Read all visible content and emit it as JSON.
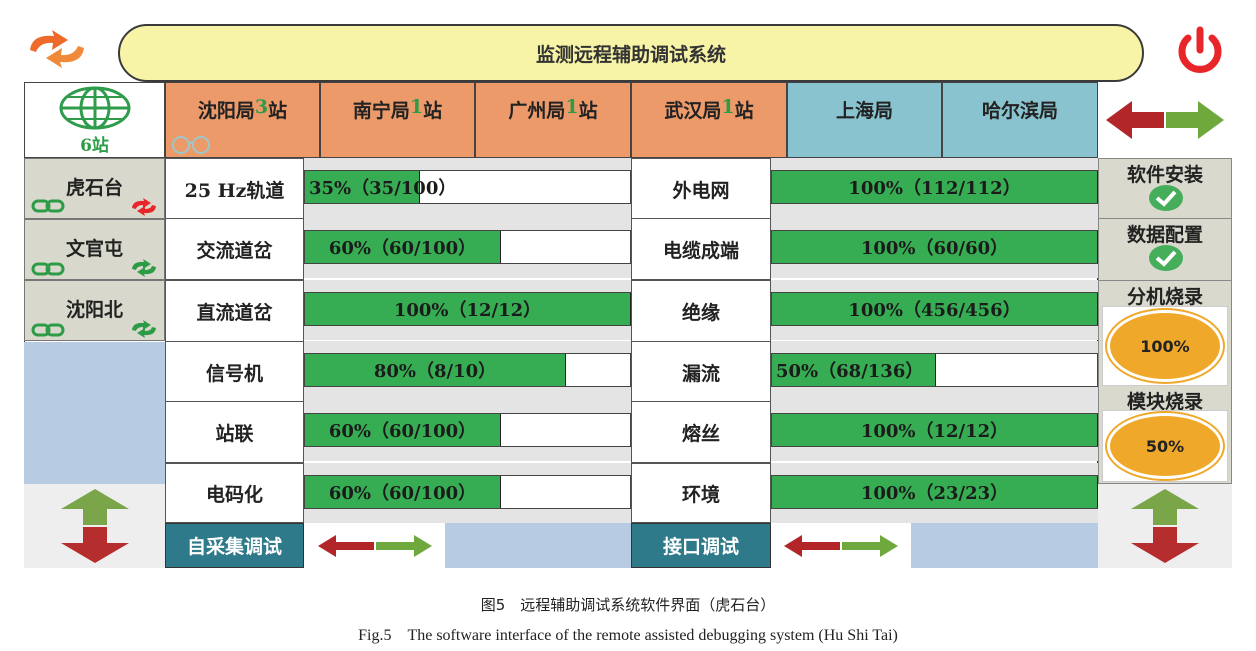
{
  "title": "监测远程辅助调试系统",
  "station_count": "6站",
  "tabs": [
    {
      "name": "沈阳局",
      "num": "3",
      "suffix": "站",
      "color": "orange"
    },
    {
      "name": "南宁局",
      "num": "1",
      "suffix": "站",
      "color": "orange"
    },
    {
      "name": "广州局",
      "num": "1",
      "suffix": "站",
      "color": "orange"
    },
    {
      "name": "武汉局",
      "num": "1",
      "suffix": "站",
      "color": "orange"
    },
    {
      "name": "上海局",
      "num": "",
      "suffix": "",
      "color": "blue"
    },
    {
      "name": "哈尔滨局",
      "num": "",
      "suffix": "",
      "color": "blue"
    }
  ],
  "stations": [
    "虎石台",
    "文官屯",
    "沈阳北"
  ],
  "left_items": [
    {
      "label": "25 Hz轨道",
      "text": "35%（35/100）",
      "pct": 35
    },
    {
      "label": "交流道岔",
      "text": "60%（60/100）",
      "pct": 60
    },
    {
      "label": "直流道岔",
      "text": "100%（12/12）",
      "pct": 100
    },
    {
      "label": "信号机",
      "text": "80%（8/10）",
      "pct": 80
    },
    {
      "label": "站联",
      "text": "60%（60/100）",
      "pct": 60
    },
    {
      "label": "电码化",
      "text": "60%（60/100）",
      "pct": 60
    }
  ],
  "right_items": [
    {
      "label": "外电网",
      "text": "100%（112/112）",
      "pct": 100
    },
    {
      "label": "电缆成端",
      "text": "100%（60/60）",
      "pct": 100
    },
    {
      "label": "绝缘",
      "text": "100%（456/456）",
      "pct": 100
    },
    {
      "label": "漏流",
      "text": "50%（68/136）",
      "pct": 50
    },
    {
      "label": "熔丝",
      "text": "100%（12/12）",
      "pct": 100
    },
    {
      "label": "环境",
      "text": "100%（23/23）",
      "pct": 100
    }
  ],
  "side": {
    "software_install": "软件安装",
    "data_config": "数据配置",
    "ext_burn": "分机烧录",
    "ext_burn_pct": "100%",
    "module_burn": "模块烧录",
    "module_burn_pct": "50%"
  },
  "bottom": {
    "self_collect": "自采集调试",
    "interface": "接口调试"
  },
  "caption": {
    "cn": "图5　远程辅助调试系统软件界面（虎石台）",
    "en": "Fig.5　The software interface of the remote assisted debugging system (Hu Shi Tai)"
  },
  "colors": {
    "title_bg": "#f7f4a8",
    "tab_orange": "#ec9a6a",
    "tab_blue": "#88c3cf",
    "bar_green": "#36ad53",
    "accent_dark": "#2f7a8a",
    "power_red": "#e8262a"
  }
}
